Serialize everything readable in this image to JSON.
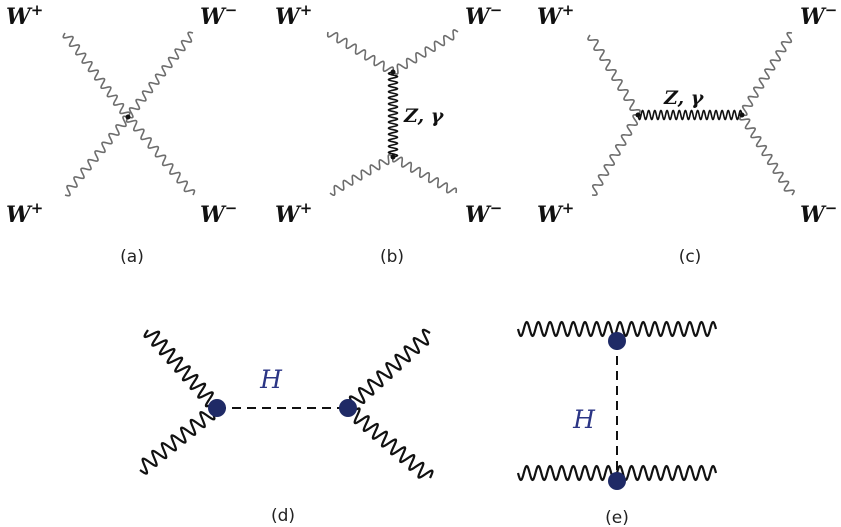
{
  "colors": {
    "wave_grey": "#6d6d6d",
    "line_black": "#111111",
    "vertex_blue": "#1f2a66",
    "h_label": "#2b3585"
  },
  "labels": {
    "w_plus_base": "W",
    "w_plus_sup": "+",
    "w_minus_base": "W",
    "w_minus_sup": "−",
    "z_gamma": "Z, γ",
    "higgs": "H"
  },
  "captions": {
    "a": "(a)",
    "b": "(b)",
    "c": "(c)",
    "d": "(d)",
    "e": "(e)"
  }
}
